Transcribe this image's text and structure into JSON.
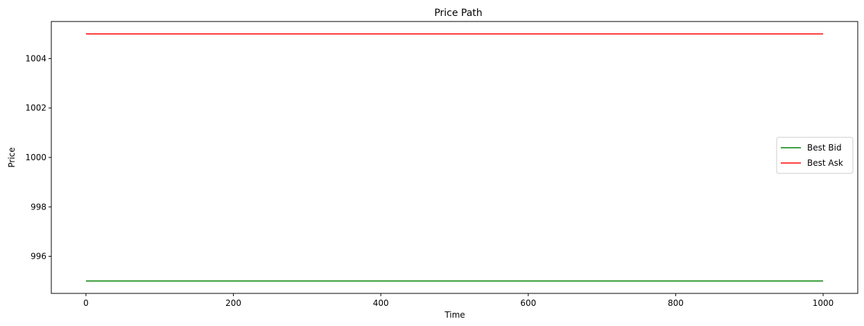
{
  "chart_data": {
    "type": "line",
    "title": "Price Path",
    "xlabel": "Time",
    "ylabel": "Price",
    "xlim": [
      -47,
      1047
    ],
    "ylim": [
      994.5,
      1005.5
    ],
    "xticks": [
      0,
      200,
      400,
      600,
      800,
      1000
    ],
    "yticks": [
      996,
      998,
      1000,
      1002,
      1004
    ],
    "grid": false,
    "legend_position": "center-right",
    "series": [
      {
        "name": "Best Bid",
        "color": "#008000",
        "x": [
          0,
          1000
        ],
        "y": [
          995,
          995
        ]
      },
      {
        "name": "Best Ask",
        "color": "#ff0000",
        "x": [
          0,
          1000
        ],
        "y": [
          1005,
          1005
        ]
      }
    ]
  }
}
